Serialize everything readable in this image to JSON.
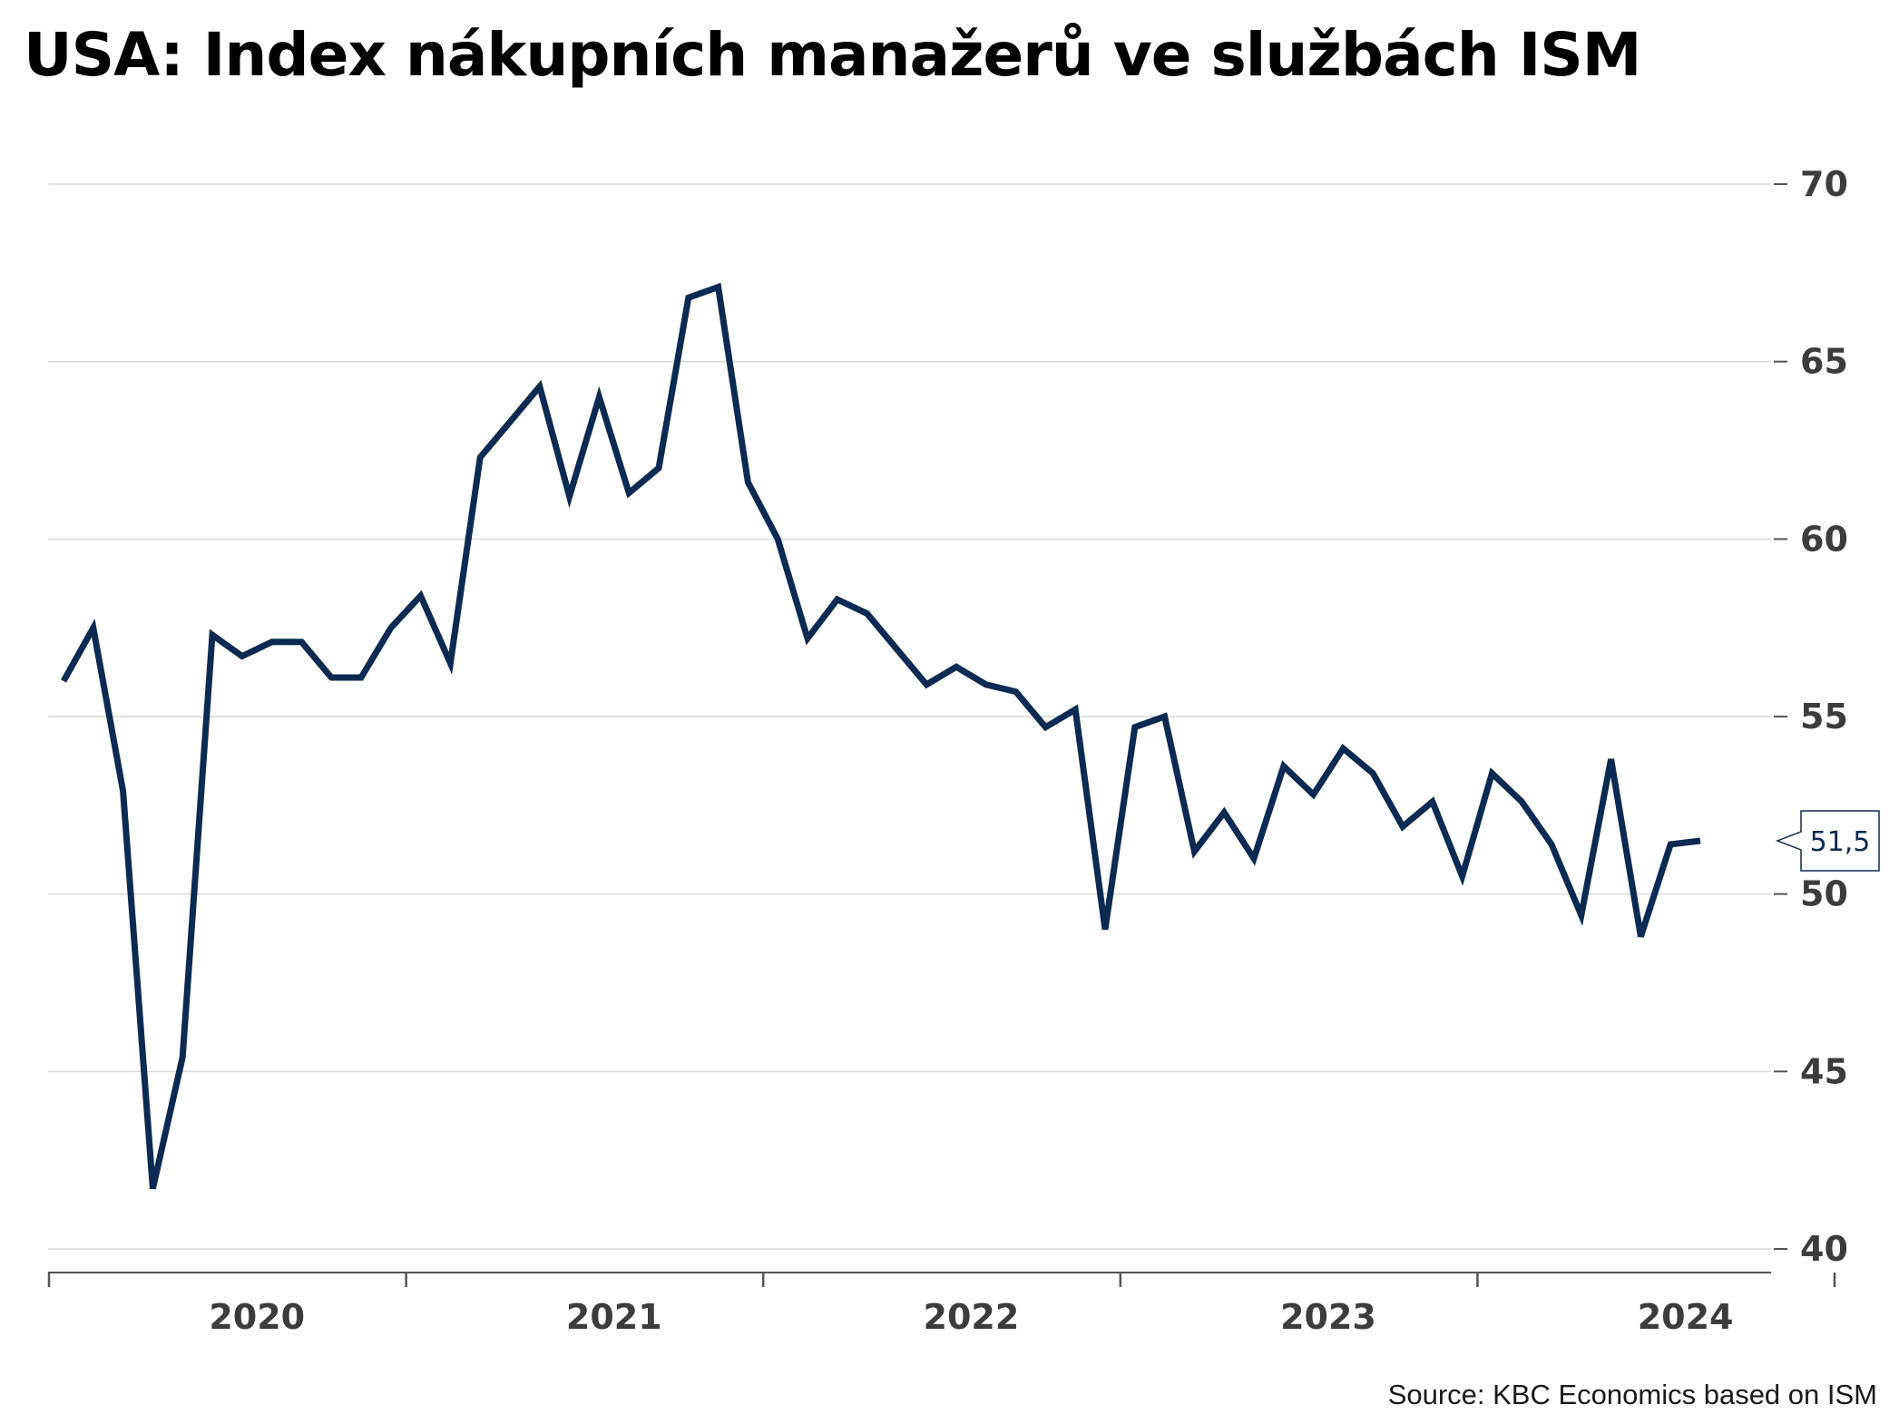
{
  "title": "USA: Index nákupních manažerů ve službách ISM",
  "source": "Source: KBC Economics based on ISM",
  "colors": {
    "line": "#0c2a52",
    "grid": "#d9d9d9",
    "axis": "#555555"
  },
  "chart_data": {
    "type": "line",
    "title": "USA: Index nákupních manažerů ve službách ISM",
    "xlabel": "",
    "ylabel": "",
    "ylim": [
      40,
      70
    ],
    "yticks": [
      "40",
      "45",
      "50",
      "55",
      "60",
      "65",
      "70"
    ],
    "x_tick_labels": [
      "2020",
      "2021",
      "2022",
      "2023",
      "2024"
    ],
    "grid": true,
    "y_axis_position": "right",
    "x_start": "2019-12",
    "last_value_label": "51,5",
    "series": [
      {
        "values": [
          56.0,
          57.5,
          52.9,
          41.7,
          45.4,
          57.3,
          56.7,
          57.1,
          57.1,
          56.1,
          56.1,
          57.5,
          58.4,
          56.5,
          62.3,
          63.3,
          64.3,
          61.2,
          64.0,
          61.3,
          62.0,
          66.8,
          67.1,
          61.6,
          60.0,
          57.2,
          58.3,
          57.9,
          56.9,
          55.9,
          56.4,
          55.9,
          55.7,
          54.7,
          55.2,
          49.0,
          54.7,
          55.0,
          51.2,
          52.3,
          51.0,
          53.6,
          52.8,
          54.1,
          53.4,
          51.9,
          52.6,
          50.5,
          53.4,
          52.6,
          51.4,
          49.4,
          53.8,
          48.8,
          51.4,
          51.5
        ]
      }
    ]
  }
}
